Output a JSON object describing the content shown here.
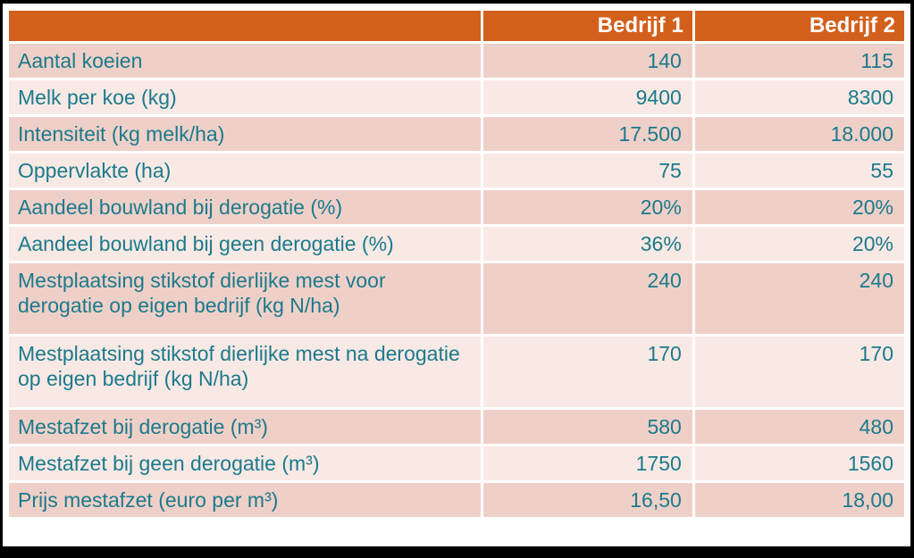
{
  "table": {
    "columns": [
      "",
      "Bedrijf 1",
      "Bedrijf 2"
    ],
    "rows": [
      {
        "label": "Aantal koeien",
        "v1": "140",
        "v2": "115"
      },
      {
        "label": "Melk per koe (kg)",
        "v1": "9400",
        "v2": "8300"
      },
      {
        "label": "Intensiteit (kg melk/ha)",
        "v1": "17.500",
        "v2": "18.000"
      },
      {
        "label": "Oppervlakte (ha)",
        "v1": "75",
        "v2": "55"
      },
      {
        "label": "Aandeel bouwland bij derogatie (%)",
        "v1": "20%",
        "v2": "20%"
      },
      {
        "label": "Aandeel bouwland bij geen derogatie (%)",
        "v1": "36%",
        "v2": "20%"
      },
      {
        "label": "Mestplaatsing stikstof dierlijke mest voor derogatie op eigen bedrijf (kg N/ha)",
        "v1": "240",
        "v2": "240"
      },
      {
        "label": "Mestplaatsing stikstof dierlijke mest na derogatie op eigen bedrijf (kg N/ha)",
        "v1": "170",
        "v2": "170"
      },
      {
        "label": "Mestafzet bij derogatie (m³)",
        "v1": "580",
        "v2": "480"
      },
      {
        "label": "Mestafzet bij geen derogatie (m³)",
        "v1": "1750",
        "v2": "1560"
      },
      {
        "label": "Prijs mestafzet (euro per m³)",
        "v1": "16,50",
        "v2": "18,00"
      }
    ],
    "colors": {
      "header_bg": "#D2601C",
      "header_text": "#FFFFFF",
      "row_dark": "#EFD0C8",
      "row_light": "#F9E9E5",
      "cell_text": "#1B7A8C",
      "frame": "#000000",
      "grid": "#FFFFFF"
    }
  },
  "chart_data": {
    "type": "table",
    "title": "",
    "columns": [
      "",
      "Bedrijf 1",
      "Bedrijf 2"
    ],
    "rows": [
      [
        "Aantal koeien",
        "140",
        "115"
      ],
      [
        "Melk per koe (kg)",
        "9400",
        "8300"
      ],
      [
        "Intensiteit (kg melk/ha)",
        "17.500",
        "18.000"
      ],
      [
        "Oppervlakte (ha)",
        "75",
        "55"
      ],
      [
        "Aandeel bouwland bij derogatie (%)",
        "20%",
        "20%"
      ],
      [
        "Aandeel bouwland bij geen derogatie (%)",
        "36%",
        "20%"
      ],
      [
        "Mestplaatsing stikstof dierlijke mest voor derogatie op eigen bedrijf (kg N/ha)",
        "240",
        "240"
      ],
      [
        "Mestplaatsing stikstof dierlijke mest na derogatie op eigen bedrijf (kg N/ha)",
        "170",
        "170"
      ],
      [
        "Mestafzet bij derogatie (m³)",
        "580",
        "480"
      ],
      [
        "Mestafzet bij geen derogatie (m³)",
        "1750",
        "1560"
      ],
      [
        "Prijs mestafzet (euro per m³)",
        "16,50",
        "18,00"
      ]
    ]
  }
}
